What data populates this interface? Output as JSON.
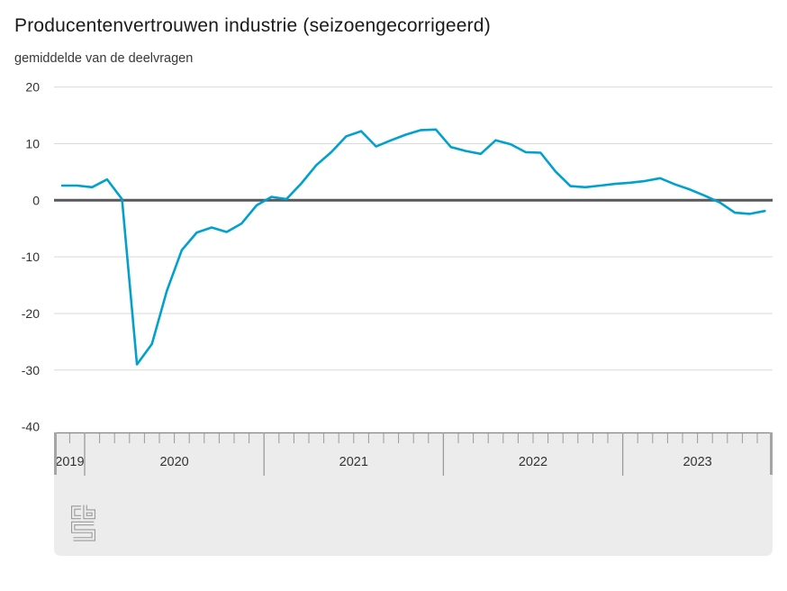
{
  "header": {
    "title": "Producentenvertrouwen industrie (seizoengecorrigeerd)",
    "subtitle": "gemiddelde van de deelvragen"
  },
  "colors": {
    "line": "#00a1cd",
    "zero_line": "#59595b",
    "gridline": "#d9d9d9",
    "axis_band_fill": "#ececec",
    "axis_band_border": "#858585",
    "tick": "#9b9b9b",
    "slider_handle": "#a5a5a5",
    "title_text": "#1a1a1a",
    "label_text": "#333333",
    "logo": "#9a9a9a"
  },
  "chart_data": {
    "type": "line",
    "title": "Producentenvertrouwen industrie (seizoengecorrigeerd)",
    "subtitle": "gemiddelde van de deelvragen",
    "xlabel": "",
    "ylabel": "gemiddelde van de deelvragen",
    "ylim": [
      -40,
      20
    ],
    "yticks": [
      20,
      10,
      0,
      -10,
      -20,
      -30,
      -40
    ],
    "grid": true,
    "legend": "none",
    "x_year_labels": [
      "2019",
      "2020",
      "2021",
      "2022",
      "2023"
    ],
    "series": [
      {
        "name": "Producentenvertrouwen",
        "color": "#00a1cd",
        "months": [
          "2019-11",
          "2019-12",
          "2020-01",
          "2020-02",
          "2020-03",
          "2020-04",
          "2020-05",
          "2020-06",
          "2020-07",
          "2020-08",
          "2020-09",
          "2020-10",
          "2020-11",
          "2020-12",
          "2021-01",
          "2021-02",
          "2021-03",
          "2021-04",
          "2021-05",
          "2021-06",
          "2021-07",
          "2021-08",
          "2021-09",
          "2021-10",
          "2021-11",
          "2021-12",
          "2022-01",
          "2022-02",
          "2022-03",
          "2022-04",
          "2022-05",
          "2022-06",
          "2022-07",
          "2022-08",
          "2022-09",
          "2022-10",
          "2022-11",
          "2022-12",
          "2023-01",
          "2023-02",
          "2023-03",
          "2023-04",
          "2023-05",
          "2023-06",
          "2023-07",
          "2023-08",
          "2023-09",
          "2023-10"
        ],
        "values": [
          2.6,
          2.6,
          2.3,
          3.7,
          0.2,
          -29.0,
          -25.4,
          -16.0,
          -8.8,
          -5.7,
          -4.8,
          -5.6,
          -4.1,
          -0.9,
          0.6,
          0.2,
          3.0,
          6.2,
          8.5,
          11.3,
          12.2,
          9.5,
          10.6,
          11.6,
          12.4,
          12.5,
          9.4,
          8.7,
          8.2,
          10.6,
          9.9,
          8.5,
          8.4,
          5.1,
          2.5,
          2.3,
          2.6,
          2.9,
          3.1,
          3.4,
          3.9,
          2.8,
          1.9,
          0.8,
          -0.4,
          -2.2,
          -2.4,
          -1.9
        ]
      }
    ]
  },
  "footer": {
    "logo_name": "cbs-logo"
  }
}
